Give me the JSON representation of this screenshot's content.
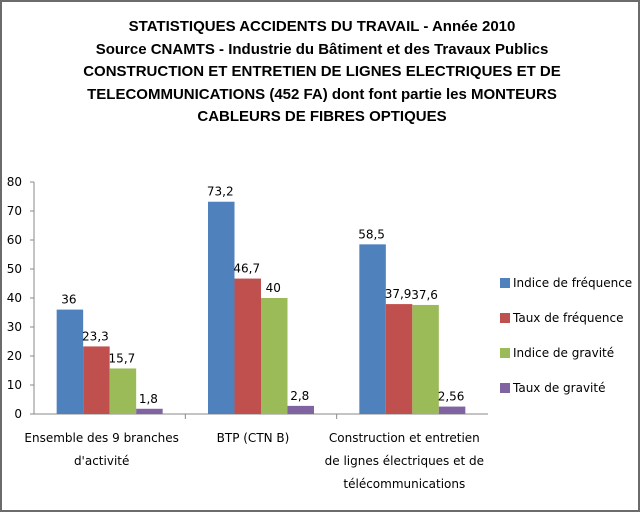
{
  "title_lines": [
    "STATISTIQUES ACCIDENTS DU TRAVAIL - Année 2010",
    "Source CNAMTS - Industrie du Bâtiment et des Travaux Publics",
    "CONSTRUCTION ET ENTRETIEN DE LIGNES ELECTRIQUES ET DE",
    "TELECOMMUNICATIONS (452 FA) dont font partie les MONTEURS",
    "CABLEURS DE FIBRES OPTIQUES"
  ],
  "chart_data": {
    "type": "bar",
    "categories": [
      [
        "Ensemble des 9 branches",
        "d'activité"
      ],
      [
        "BTP (CTN B)"
      ],
      [
        "Construction et entretien",
        "de lignes électriques et de",
        "télécommunications"
      ]
    ],
    "series": [
      {
        "name": "Indice de fréquence",
        "values": [
          36,
          73.2,
          58.5
        ],
        "labels": [
          "36",
          "73,2",
          "58,5"
        ],
        "color": "#4f81bd"
      },
      {
        "name": "Taux de fréquence",
        "values": [
          23.3,
          46.7,
          37.9
        ],
        "labels": [
          "23,3",
          "46,7",
          "37,9"
        ],
        "color": "#c0504d"
      },
      {
        "name": "Indice de gravité",
        "values": [
          15.7,
          40,
          37.6
        ],
        "labels": [
          "15,7",
          "40",
          "37,6"
        ],
        "color": "#9bbb59"
      },
      {
        "name": "Taux de gravité",
        "values": [
          1.8,
          2.8,
          2.56
        ],
        "labels": [
          "1,8",
          "2,8",
          "2,56"
        ],
        "color": "#8064a2"
      }
    ],
    "ylim": [
      0,
      80
    ],
    "yticks": [
      0,
      10,
      20,
      30,
      40,
      50,
      60,
      70,
      80
    ],
    "grid": false,
    "legend": "right"
  }
}
